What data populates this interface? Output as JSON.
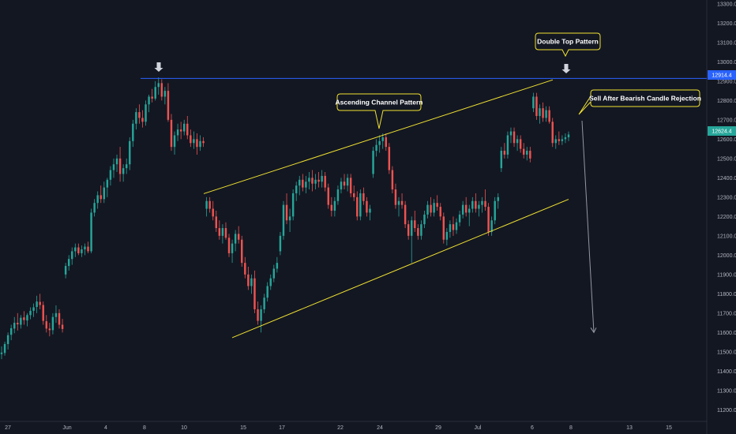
{
  "chart_data": {
    "type": "candlestick",
    "y_axis": {
      "ylim": [
        11140,
        13320
      ],
      "ticks": [
        11200.0,
        11300.0,
        11400.0,
        11500.0,
        11600.0,
        11700.0,
        11800.0,
        11900.0,
        12000.0,
        12100.0,
        12200.0,
        12300.0,
        12400.0,
        12500.0,
        12600.0,
        12700.0,
        12800.0,
        12900.0,
        13000.0,
        13100.0,
        13200.0,
        13300.0
      ],
      "tick_labels": [
        "11200.0",
        "11300.0",
        "11400.0",
        "11500.0",
        "11600.0",
        "11700.0",
        "11800.0",
        "11900.0",
        "12000.0",
        "12100.0",
        "12200.0",
        "12300.0",
        "12400.0",
        "12500.0",
        "12600.0",
        "12700.0",
        "12800.0",
        "12900.0",
        "13000.0",
        "13100.0",
        "13200.0",
        "13300.0"
      ]
    },
    "x_axis": {
      "tick_labels": [
        "27",
        "Jun",
        "4",
        "8",
        "10",
        "15",
        "17",
        "22",
        "24",
        "29",
        "Jul",
        "6",
        "8",
        "13",
        "15"
      ]
    },
    "colors": {
      "up": "#26a69a",
      "down": "#ef5350",
      "background": "#131722",
      "resistance": "#2962ff",
      "channel": "#f0e130",
      "arrow": "#d1d4dc"
    },
    "price_tags": {
      "resistance": "12914.4",
      "last": "12624.4"
    },
    "resistance_level": 12914.4,
    "last_price": 12624.4,
    "channel": {
      "upper": {
        "start": 12318,
        "end": 12907
      },
      "lower": {
        "start": 11573,
        "end": 12289
      }
    },
    "projection_target": 11600,
    "annotations": {
      "double_top": "Double Top Pattern",
      "ascending_channel": "Ascending Channel Pattern",
      "sell_signal": "Sell After Bearish Candle Rejection"
    },
    "candles": [
      [
        11488,
        11528,
        11462,
        11496
      ],
      [
        11494,
        11552,
        11480,
        11540
      ],
      [
        11540,
        11600,
        11512,
        11586
      ],
      [
        11588,
        11640,
        11560,
        11622
      ],
      [
        11620,
        11680,
        11596,
        11650
      ],
      [
        11650,
        11700,
        11610,
        11642
      ],
      [
        11640,
        11690,
        11620,
        11676
      ],
      [
        11678,
        11710,
        11640,
        11664
      ],
      [
        11662,
        11700,
        11632,
        11690
      ],
      [
        11690,
        11730,
        11668,
        11712
      ],
      [
        11712,
        11750,
        11680,
        11730
      ],
      [
        11732,
        11790,
        11700,
        11760
      ],
      [
        11758,
        11800,
        11720,
        11742
      ],
      [
        11742,
        11760,
        11640,
        11660
      ],
      [
        11658,
        11690,
        11600,
        11620
      ],
      [
        11620,
        11650,
        11580,
        11612
      ],
      [
        11612,
        11700,
        11590,
        11680
      ],
      [
        11680,
        11740,
        11650,
        11700
      ],
      [
        11700,
        11720,
        11620,
        11640
      ],
      [
        11640,
        11670,
        11600,
        11618
      ],
      [
        11900,
        11960,
        11880,
        11944
      ],
      [
        11944,
        12000,
        11920,
        11980
      ],
      [
        11980,
        12040,
        11950,
        12020
      ],
      [
        12020,
        12060,
        11990,
        12040
      ],
      [
        12040,
        12060,
        12000,
        12010
      ],
      [
        12010,
        12050,
        11990,
        12030
      ],
      [
        12030,
        12060,
        12000,
        12044
      ],
      [
        12044,
        12070,
        12010,
        12020
      ],
      [
        12020,
        12240,
        12010,
        12220
      ],
      [
        12220,
        12290,
        12200,
        12270
      ],
      [
        12270,
        12330,
        12240,
        12310
      ],
      [
        12310,
        12360,
        12270,
        12290
      ],
      [
        12290,
        12380,
        12270,
        12350
      ],
      [
        12350,
        12400,
        12300,
        12390
      ],
      [
        12390,
        12460,
        12360,
        12440
      ],
      [
        12440,
        12500,
        12400,
        12470
      ],
      [
        12470,
        12520,
        12430,
        12500
      ],
      [
        12500,
        12560,
        12380,
        12420
      ],
      [
        12420,
        12470,
        12380,
        12450
      ],
      [
        12450,
        12500,
        12420,
        12470
      ],
      [
        12470,
        12610,
        12440,
        12590
      ],
      [
        12590,
        12700,
        12560,
        12680
      ],
      [
        12680,
        12760,
        12650,
        12740
      ],
      [
        12740,
        12780,
        12680,
        12710
      ],
      [
        12710,
        12750,
        12660,
        12690
      ],
      [
        12690,
        12800,
        12670,
        12780
      ],
      [
        12780,
        12830,
        12740,
        12820
      ],
      [
        12820,
        12860,
        12790,
        12810
      ],
      [
        12810,
        12900,
        12800,
        12870
      ],
      [
        12870,
        12920,
        12830,
        12890
      ],
      [
        12890,
        12910,
        12800,
        12820
      ],
      [
        12820,
        12870,
        12780,
        12850
      ],
      [
        12850,
        12890,
        12690,
        12700
      ],
      [
        12700,
        12730,
        12540,
        12560
      ],
      [
        12560,
        12640,
        12520,
        12620
      ],
      [
        12620,
        12680,
        12590,
        12650
      ],
      [
        12650,
        12690,
        12600,
        12640
      ],
      [
        12640,
        12700,
        12620,
        12680
      ],
      [
        12680,
        12720,
        12600,
        12620
      ],
      [
        12620,
        12650,
        12560,
        12580
      ],
      [
        12580,
        12640,
        12550,
        12600
      ],
      [
        12600,
        12630,
        12520,
        12560
      ],
      [
        12560,
        12620,
        12540,
        12590
      ],
      [
        12590,
        12610,
        12560,
        12580
      ],
      [
        12240,
        12300,
        12200,
        12280
      ],
      [
        12280,
        12300,
        12220,
        12240
      ],
      [
        12240,
        12280,
        12180,
        12200
      ],
      [
        12200,
        12230,
        12120,
        12140
      ],
      [
        12140,
        12180,
        12080,
        12100
      ],
      [
        12100,
        12160,
        12060,
        12140
      ],
      [
        12140,
        12170,
        12080,
        12090
      ],
      [
        12090,
        12110,
        11990,
        12010
      ],
      [
        12010,
        12080,
        11960,
        12060
      ],
      [
        12060,
        12130,
        12020,
        12110
      ],
      [
        12110,
        12150,
        12060,
        12080
      ],
      [
        12080,
        12100,
        11940,
        11960
      ],
      [
        11960,
        11990,
        11880,
        11900
      ],
      [
        11900,
        11940,
        11820,
        11840
      ],
      [
        11840,
        11900,
        11800,
        11880
      ],
      [
        11880,
        11920,
        11700,
        11720
      ],
      [
        11720,
        11760,
        11640,
        11660
      ],
      [
        11660,
        11740,
        11600,
        11720
      ],
      [
        11720,
        11800,
        11700,
        11780
      ],
      [
        11780,
        11860,
        11760,
        11840
      ],
      [
        11840,
        11900,
        11820,
        11880
      ],
      [
        11880,
        11950,
        11860,
        11930
      ],
      [
        11930,
        11990,
        11910,
        11960
      ],
      [
        12020,
        12120,
        12000,
        12100
      ],
      [
        12100,
        12280,
        12080,
        12260
      ],
      [
        12260,
        12320,
        12160,
        12180
      ],
      [
        12180,
        12240,
        12120,
        12200
      ],
      [
        12200,
        12340,
        12180,
        12320
      ],
      [
        12320,
        12380,
        12280,
        12360
      ],
      [
        12360,
        12410,
        12310,
        12390
      ],
      [
        12390,
        12420,
        12330,
        12350
      ],
      [
        12350,
        12410,
        12320,
        12380
      ],
      [
        12380,
        12430,
        12340,
        12400
      ],
      [
        12400,
        12440,
        12330,
        12370
      ],
      [
        12370,
        12420,
        12340,
        12390
      ],
      [
        12390,
        12430,
        12350,
        12380
      ],
      [
        12380,
        12440,
        12350,
        12410
      ],
      [
        12410,
        12430,
        12330,
        12350
      ],
      [
        12350,
        12370,
        12240,
        12260
      ],
      [
        12260,
        12300,
        12200,
        12230
      ],
      [
        12230,
        12300,
        12200,
        12280
      ],
      [
        12280,
        12360,
        12260,
        12340
      ],
      [
        12340,
        12400,
        12320,
        12380
      ],
      [
        12380,
        12420,
        12340,
        12360
      ],
      [
        12360,
        12420,
        12330,
        12400
      ],
      [
        12400,
        12420,
        12300,
        12320
      ],
      [
        12320,
        12360,
        12280,
        12300
      ],
      [
        12300,
        12330,
        12180,
        12200
      ],
      [
        12200,
        12340,
        12180,
        12320
      ],
      [
        12320,
        12350,
        12260,
        12280
      ],
      [
        12280,
        12300,
        12200,
        12220
      ],
      [
        12220,
        12260,
        12180,
        12240
      ],
      [
        12420,
        12560,
        12400,
        12540
      ],
      [
        12540,
        12600,
        12510,
        12570
      ],
      [
        12570,
        12620,
        12530,
        12590
      ],
      [
        12590,
        12630,
        12550,
        12610
      ],
      [
        12610,
        12630,
        12540,
        12560
      ],
      [
        12560,
        12580,
        12420,
        12440
      ],
      [
        12440,
        12460,
        12320,
        12340
      ],
      [
        12340,
        12370,
        12240,
        12260
      ],
      [
        12260,
        12300,
        12200,
        12280
      ],
      [
        12280,
        12320,
        12240,
        12260
      ],
      [
        12260,
        12280,
        12140,
        12160
      ],
      [
        12160,
        12180,
        12080,
        12100
      ],
      [
        12100,
        12200,
        11960,
        12180
      ],
      [
        12180,
        12230,
        12120,
        12140
      ],
      [
        12140,
        12160,
        12080,
        12100
      ],
      [
        12100,
        12180,
        12080,
        12160
      ],
      [
        12160,
        12230,
        12140,
        12210
      ],
      [
        12210,
        12280,
        12190,
        12260
      ],
      [
        12260,
        12300,
        12200,
        12220
      ],
      [
        12220,
        12290,
        12200,
        12270
      ],
      [
        12270,
        12310,
        12230,
        12250
      ],
      [
        12250,
        12270,
        12180,
        12200
      ],
      [
        12200,
        12220,
        12060,
        12080
      ],
      [
        12080,
        12140,
        12050,
        12120
      ],
      [
        12120,
        12180,
        12090,
        12160
      ],
      [
        12160,
        12200,
        12100,
        12130
      ],
      [
        12130,
        12190,
        12110,
        12170
      ],
      [
        12170,
        12230,
        12150,
        12210
      ],
      [
        12210,
        12280,
        12190,
        12260
      ],
      [
        12260,
        12300,
        12200,
        12220
      ],
      [
        12220,
        12260,
        12150,
        12240
      ],
      [
        12240,
        12300,
        12220,
        12280
      ],
      [
        12280,
        12320,
        12220,
        12240
      ],
      [
        12240,
        12280,
        12200,
        12260
      ],
      [
        12260,
        12300,
        12220,
        12280
      ],
      [
        12280,
        12340,
        12230,
        12250
      ],
      [
        12250,
        12270,
        12100,
        12120
      ],
      [
        12120,
        12200,
        12100,
        12180
      ],
      [
        12180,
        12300,
        12160,
        12280
      ],
      [
        12280,
        12320,
        12240,
        12300
      ],
      [
        12450,
        12560,
        12430,
        12540
      ],
      [
        12540,
        12580,
        12500,
        12520
      ],
      [
        12520,
        12640,
        12500,
        12620
      ],
      [
        12620,
        12660,
        12580,
        12640
      ],
      [
        12640,
        12660,
        12560,
        12580
      ],
      [
        12580,
        12620,
        12540,
        12600
      ],
      [
        12600,
        12620,
        12530,
        12550
      ],
      [
        12550,
        12580,
        12500,
        12520
      ],
      [
        12520,
        12560,
        12490,
        12540
      ],
      [
        12540,
        12560,
        12480,
        12500
      ],
      [
        12760,
        12840,
        12740,
        12820
      ],
      [
        12820,
        12840,
        12700,
        12720
      ],
      [
        12720,
        12780,
        12680,
        12760
      ],
      [
        12760,
        12790,
        12690,
        12710
      ],
      [
        12710,
        12770,
        12690,
        12750
      ],
      [
        12750,
        12770,
        12680,
        12690
      ],
      [
        12690,
        12710,
        12560,
        12580
      ],
      [
        12580,
        12620,
        12550,
        12600
      ],
      [
        12600,
        12640,
        12570,
        12590
      ],
      [
        12590,
        12620,
        12570,
        12600
      ],
      [
        12600,
        12630,
        12580,
        12610
      ],
      [
        12610,
        12640,
        12590,
        12624
      ]
    ]
  }
}
